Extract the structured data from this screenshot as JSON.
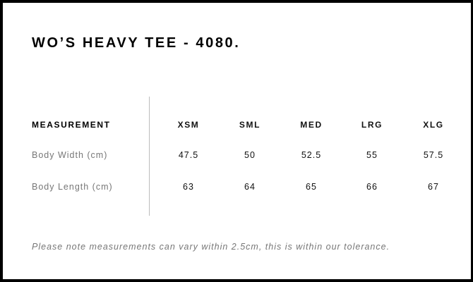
{
  "title": "WO’S HEAVY TEE - 4080.",
  "table": {
    "header": "MEASUREMENT",
    "sizes": [
      "XSM",
      "SML",
      "MED",
      "LRG",
      "XLG"
    ],
    "rows": [
      {
        "label": "Body Width (cm)",
        "values": [
          "47.5",
          "50",
          "52.5",
          "55",
          "57.5"
        ]
      },
      {
        "label": "Body Length (cm)",
        "values": [
          "63",
          "64",
          "65",
          "66",
          "67"
        ]
      }
    ]
  },
  "note": "Please note measurements can vary within 2.5cm, this is within our tolerance."
}
